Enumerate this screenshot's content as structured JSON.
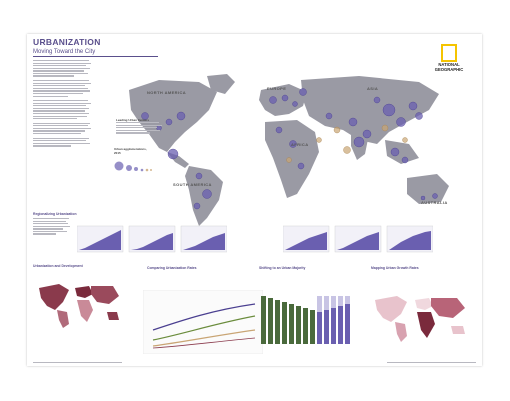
{
  "header": {
    "title": "URBANIZATION",
    "subtitle": "Moving Toward the City"
  },
  "logo": {
    "line1": "NATIONAL",
    "line2": "GEOGRAPHIC",
    "frame_color": "#f5c400"
  },
  "map": {
    "regions": [
      "NORTH AMERICA",
      "EUROPE",
      "ASIA",
      "AFRICA",
      "SOUTH AMERICA",
      "AUSTRALIA"
    ],
    "land_color": "#9a9aa4",
    "city_circle_color": "#6a5fb0",
    "growth_circle_color": "#c9a574"
  },
  "legends": {
    "leading_centers": "Leading Urban Centers",
    "urban_agglomerations": "Urban agglomerations, 2015"
  },
  "sections": {
    "regionalizing": "Regionalizing Urbanization",
    "urbanization_development": "Urbanization and Development",
    "comparing": "Comparing Urbanization Rates",
    "shifting": "Shifting to an Urban Majority",
    "mapping": "Mapping Urban Growth Rates"
  },
  "colors": {
    "accent": "#5a4f8c",
    "chart_fill": "#6a5fb0",
    "choropleth_dark": "#7a2a3c",
    "choropleth_light": "#e8c3cc"
  }
}
